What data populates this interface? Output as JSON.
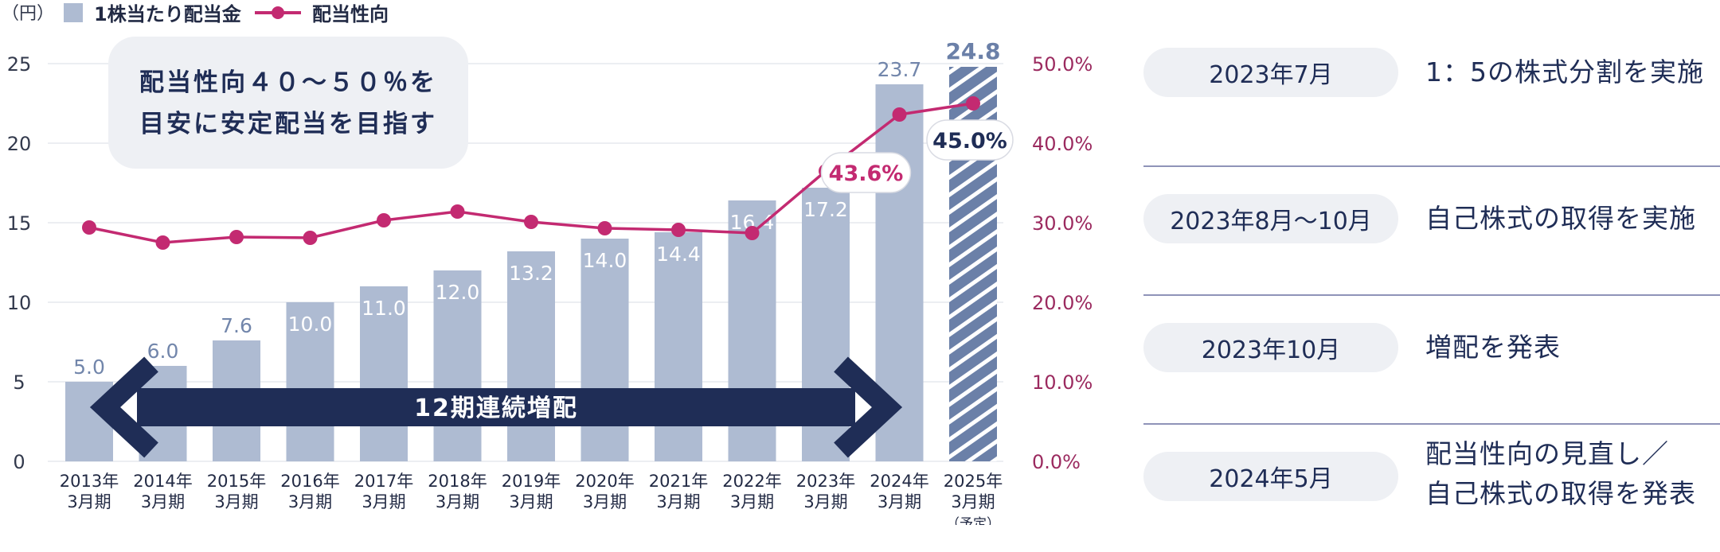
{
  "chart_data": {
    "type": "bar+line",
    "unit_label": "（円）",
    "legend": [
      {
        "label": "1株当たり配当金",
        "color": "#aebbd2"
      },
      {
        "label": "配当性向",
        "color": "#c32a71"
      }
    ],
    "categories": [
      [
        "2013年",
        "3月期"
      ],
      [
        "2014年",
        "3月期"
      ],
      [
        "2015年",
        "3月期"
      ],
      [
        "2016年",
        "3月期"
      ],
      [
        "2017年",
        "3月期"
      ],
      [
        "2018年",
        "3月期"
      ],
      [
        "2019年",
        "3月期"
      ],
      [
        "2020年",
        "3月期"
      ],
      [
        "2021年",
        "3月期"
      ],
      [
        "2022年",
        "3月期"
      ],
      [
        "2023年",
        "3月期"
      ],
      [
        "2024年",
        "3月期"
      ],
      [
        "2025年",
        "3月期",
        "（予定）"
      ]
    ],
    "series": [
      {
        "name": "1株当たり配当金",
        "axis": "left",
        "values": [
          5.0,
          6.0,
          7.6,
          10.0,
          11.0,
          12.0,
          13.2,
          14.0,
          14.4,
          16.4,
          17.2,
          23.7,
          24.8
        ],
        "labels": [
          "5.0",
          "6.0",
          "7.6",
          "10.0",
          "11.0",
          "12.0",
          "13.2",
          "14.0",
          "14.4",
          "16.4",
          "17.2",
          "23.7",
          "24.8"
        ],
        "forecast_index": 12
      },
      {
        "name": "配当性向",
        "axis": "right",
        "values": [
          29.4,
          27.5,
          28.2,
          28.1,
          30.3,
          31.4,
          30.1,
          29.3,
          29.1,
          28.7,
          36.5,
          43.6,
          45.0
        ],
        "highlight_labels": [
          {
            "index": 11,
            "text": "43.6%"
          },
          {
            "index": 12,
            "text": "45.0%"
          }
        ]
      }
    ],
    "y_left": {
      "min": 0,
      "max": 25,
      "ticks": [
        "0",
        "5",
        "10",
        "15",
        "20",
        "25"
      ]
    },
    "y_right": {
      "min": 0,
      "max": 50,
      "ticks": [
        "0.0%",
        "10.0%",
        "20.0%",
        "30.0%",
        "40.0%",
        "50.0%"
      ]
    },
    "callout_lines": [
      "配当性向４０～５０％を",
      "目安に安定配当を目指す"
    ],
    "arrow_label": "12期連続増配",
    "colors": {
      "bar": "#aebbd2",
      "bar_label": "#7286ab",
      "forecast": "#6b80a8",
      "line": "#c32a71",
      "navy": "#1f2d56",
      "grid": "#e6e8ee",
      "right_axis": "#9b2a5f"
    }
  },
  "timeline": [
    {
      "date": "2023年7月",
      "text": [
        "1：5の株式分割を実施"
      ]
    },
    {
      "date": "2023年8月～10月",
      "text": [
        "自己株式の取得を実施"
      ]
    },
    {
      "date": "2023年10月",
      "text": [
        "増配を発表"
      ]
    },
    {
      "date": "2024年5月",
      "text": [
        "配当性向の見直し／",
        "自己株式の取得を発表"
      ]
    }
  ]
}
